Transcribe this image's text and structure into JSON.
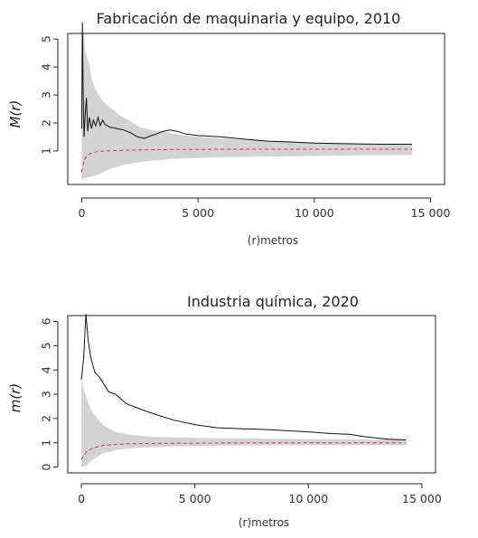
{
  "chart_data": [
    {
      "type": "line",
      "title": "Fabricación de maquinaria y equipo, 2010",
      "xlabel": "(r)metros",
      "ylabel": "M(r)",
      "xlim": [
        0,
        15000
      ],
      "ylim": [
        0,
        5
      ],
      "x_ticks": [
        0,
        5000,
        10000,
        15000
      ],
      "x_tick_labels": [
        "0",
        "5 000",
        "10 000",
        "15 000"
      ],
      "y_ticks": [
        1,
        2,
        3,
        4,
        5
      ],
      "grid": false,
      "series": [
        {
          "role": "observed",
          "points": [
            [
              0,
              1.8
            ],
            [
              30,
              5.6
            ],
            [
              60,
              3.2
            ],
            [
              100,
              1.5
            ],
            [
              150,
              2.3
            ],
            [
              200,
              2.9
            ],
            [
              260,
              1.7
            ],
            [
              330,
              2.2
            ],
            [
              420,
              1.8
            ],
            [
              500,
              2.1
            ],
            [
              600,
              1.9
            ],
            [
              700,
              2.2
            ],
            [
              800,
              1.9
            ],
            [
              900,
              2.1
            ],
            [
              1000,
              1.95
            ],
            [
              1200,
              1.85
            ],
            [
              1500,
              1.8
            ],
            [
              1800,
              1.75
            ],
            [
              2100,
              1.65
            ],
            [
              2400,
              1.5
            ],
            [
              2700,
              1.45
            ],
            [
              3000,
              1.55
            ],
            [
              3200,
              1.6
            ],
            [
              3500,
              1.7
            ],
            [
              3800,
              1.75
            ],
            [
              4100,
              1.7
            ],
            [
              4500,
              1.6
            ],
            [
              5000,
              1.55
            ],
            [
              6000,
              1.5
            ],
            [
              7000,
              1.42
            ],
            [
              8000,
              1.35
            ],
            [
              9000,
              1.32
            ],
            [
              10000,
              1.28
            ],
            [
              11000,
              1.26
            ],
            [
              12000,
              1.25
            ],
            [
              13000,
              1.24
            ],
            [
              14200,
              1.24
            ]
          ]
        },
        {
          "role": "theoretical",
          "points": [
            [
              0,
              0.25
            ],
            [
              100,
              0.65
            ],
            [
              200,
              0.8
            ],
            [
              400,
              0.92
            ],
            [
              700,
              0.98
            ],
            [
              1000,
              1.0
            ],
            [
              2000,
              1.03
            ],
            [
              4000,
              1.05
            ],
            [
              8000,
              1.06
            ],
            [
              14200,
              1.06
            ]
          ]
        },
        {
          "role": "envelope-upper",
          "points": [
            [
              0,
              5.3
            ],
            [
              100,
              5.2
            ],
            [
              150,
              4.6
            ],
            [
              250,
              4.3
            ],
            [
              350,
              4.0
            ],
            [
              450,
              3.5
            ],
            [
              600,
              3.2
            ],
            [
              800,
              2.9
            ],
            [
              1000,
              2.7
            ],
            [
              1300,
              2.5
            ],
            [
              1600,
              2.3
            ],
            [
              2000,
              2.1
            ],
            [
              2500,
              1.85
            ],
            [
              3000,
              1.75
            ],
            [
              3500,
              1.7
            ],
            [
              4000,
              1.6
            ],
            [
              5000,
              1.5
            ],
            [
              6000,
              1.45
            ],
            [
              7000,
              1.4
            ],
            [
              8000,
              1.36
            ],
            [
              9000,
              1.32
            ],
            [
              10000,
              1.3
            ],
            [
              11000,
              1.28
            ],
            [
              12000,
              1.26
            ],
            [
              13000,
              1.24
            ],
            [
              14200,
              1.22
            ]
          ]
        },
        {
          "role": "envelope-lower",
          "points": [
            [
              0,
              0.0
            ],
            [
              300,
              0.05
            ],
            [
              700,
              0.15
            ],
            [
              1200,
              0.35
            ],
            [
              1800,
              0.5
            ],
            [
              2500,
              0.6
            ],
            [
              3000,
              0.65
            ],
            [
              4000,
              0.72
            ],
            [
              5000,
              0.75
            ],
            [
              6000,
              0.78
            ],
            [
              8000,
              0.8
            ],
            [
              10000,
              0.82
            ],
            [
              12000,
              0.84
            ],
            [
              14200,
              0.85
            ]
          ]
        }
      ]
    },
    {
      "type": "line",
      "title": "Industria química, 2020",
      "xlabel": "(r)metros",
      "ylabel": "m(r)",
      "xlim": [
        0,
        15000
      ],
      "ylim": [
        0,
        6
      ],
      "x_ticks": [
        0,
        5000,
        10000,
        15000
      ],
      "x_tick_labels": [
        "0",
        "5 000",
        "10 000",
        "15 000"
      ],
      "y_ticks": [
        0,
        1,
        2,
        3,
        4,
        5,
        6
      ],
      "grid": false,
      "series": [
        {
          "role": "observed",
          "points": [
            [
              0,
              3.6
            ],
            [
              100,
              4.5
            ],
            [
              200,
              6.3
            ],
            [
              300,
              5.2
            ],
            [
              400,
              4.6
            ],
            [
              500,
              4.2
            ],
            [
              600,
              3.9
            ],
            [
              800,
              3.7
            ],
            [
              1000,
              3.4
            ],
            [
              1200,
              3.1
            ],
            [
              1500,
              3.0
            ],
            [
              2000,
              2.6
            ],
            [
              3000,
              2.25
            ],
            [
              4000,
              1.95
            ],
            [
              5000,
              1.75
            ],
            [
              6000,
              1.62
            ],
            [
              7000,
              1.58
            ],
            [
              8000,
              1.55
            ],
            [
              9000,
              1.5
            ],
            [
              10000,
              1.45
            ],
            [
              11000,
              1.38
            ],
            [
              11800,
              1.35
            ],
            [
              12500,
              1.25
            ],
            [
              13500,
              1.15
            ],
            [
              14300,
              1.12
            ]
          ]
        },
        {
          "role": "theoretical",
          "points": [
            [
              0,
              0.3
            ],
            [
              200,
              0.6
            ],
            [
              500,
              0.78
            ],
            [
              1000,
              0.9
            ],
            [
              2000,
              0.96
            ],
            [
              4000,
              0.98
            ],
            [
              8000,
              1.0
            ],
            [
              14300,
              1.0
            ]
          ]
        },
        {
          "role": "envelope-upper",
          "points": [
            [
              0,
              3.6
            ],
            [
              100,
              3.2
            ],
            [
              200,
              2.9
            ],
            [
              400,
              2.4
            ],
            [
              700,
              2.0
            ],
            [
              1000,
              1.7
            ],
            [
              1500,
              1.45
            ],
            [
              2000,
              1.35
            ],
            [
              3000,
              1.25
            ],
            [
              5000,
              1.2
            ],
            [
              8000,
              1.17
            ],
            [
              11000,
              1.15
            ],
            [
              14300,
              1.12
            ]
          ]
        },
        {
          "role": "envelope-lower",
          "points": [
            [
              0,
              0.0
            ],
            [
              200,
              0.05
            ],
            [
              500,
              0.3
            ],
            [
              900,
              0.55
            ],
            [
              1500,
              0.7
            ],
            [
              2500,
              0.8
            ],
            [
              4000,
              0.85
            ],
            [
              6000,
              0.88
            ],
            [
              9000,
              0.9
            ],
            [
              12000,
              0.9
            ],
            [
              14300,
              0.9
            ]
          ]
        }
      ]
    }
  ]
}
